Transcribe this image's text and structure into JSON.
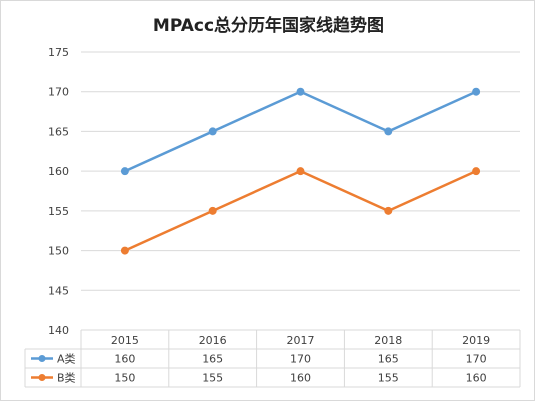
{
  "chart_data": {
    "type": "line",
    "title": "MPAcc总分历年国家线趋势图",
    "categories": [
      "2015",
      "2016",
      "2017",
      "2018",
      "2019"
    ],
    "series": [
      {
        "name": "A类",
        "values": [
          160,
          165,
          170,
          165,
          170
        ],
        "color": "#5B9BD5"
      },
      {
        "name": "B类",
        "values": [
          150,
          155,
          160,
          155,
          160
        ],
        "color": "#ED7D31"
      }
    ],
    "ylim": [
      140,
      175
    ],
    "yticks": [
      "140",
      "145",
      "150",
      "155",
      "160",
      "165",
      "170",
      "175"
    ],
    "grid": true,
    "legend": "data-table"
  }
}
